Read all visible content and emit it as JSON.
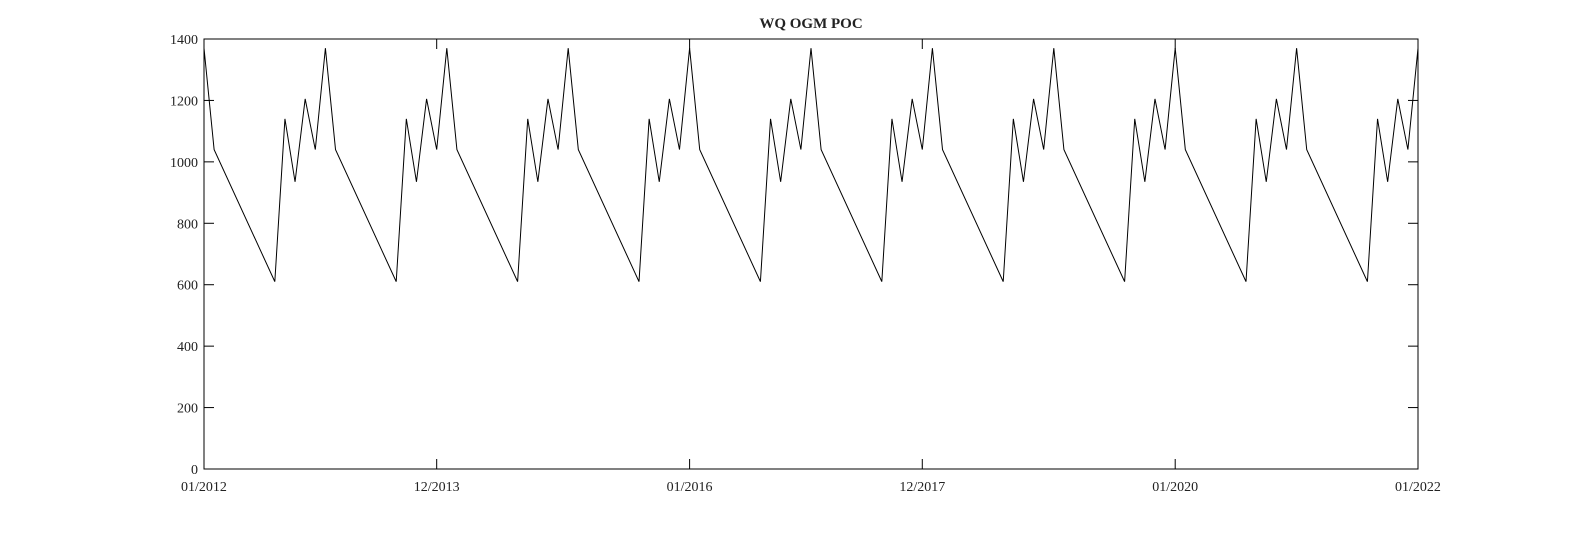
{
  "chart_data": {
    "type": "line",
    "title": "WQ OGM POC",
    "x": [
      "01/2012",
      "02/2012",
      "08/2012",
      "09/2012",
      "10/2012",
      "11/2012",
      "12/2012",
      "01/2013",
      "02/2013",
      "08/2013",
      "09/2013",
      "10/2013",
      "11/2013",
      "12/2013",
      "01/2014",
      "02/2014",
      "08/2014",
      "09/2014",
      "10/2014",
      "11/2014",
      "12/2014",
      "01/2015",
      "02/2015",
      "08/2015",
      "09/2015",
      "10/2015",
      "11/2015",
      "12/2015",
      "01/2016",
      "02/2016",
      "08/2016",
      "09/2016",
      "10/2016",
      "11/2016",
      "12/2016",
      "01/2017",
      "02/2017",
      "08/2017",
      "09/2017",
      "10/2017",
      "11/2017",
      "12/2017",
      "01/2018",
      "02/2018",
      "08/2018",
      "09/2018",
      "10/2018",
      "11/2018",
      "12/2018",
      "01/2019",
      "02/2019",
      "08/2019",
      "09/2019",
      "10/2019",
      "11/2019",
      "12/2019",
      "01/2020",
      "02/2020",
      "08/2020",
      "09/2020",
      "10/2020",
      "11/2020",
      "12/2020",
      "01/2021",
      "02/2021",
      "08/2021",
      "09/2021",
      "10/2021",
      "11/2021",
      "12/2021",
      "01/2022"
    ],
    "series": [
      {
        "color": "#000000",
        "values": [
          1370,
          1040,
          610,
          1140,
          935,
          1205,
          1040,
          1370,
          1040,
          610,
          1140,
          935,
          1205,
          1040,
          1370,
          1040,
          610,
          1140,
          935,
          1205,
          1040,
          1370,
          1040,
          610,
          1140,
          935,
          1205,
          1040,
          1370,
          1040,
          610,
          1140,
          935,
          1205,
          1040,
          1370,
          1040,
          610,
          1140,
          935,
          1205,
          1040,
          1370,
          1040,
          610,
          1140,
          935,
          1205,
          1040,
          1370,
          1040,
          610,
          1140,
          935,
          1205,
          1040,
          1370,
          1040,
          610,
          1140,
          935,
          1205,
          1040,
          1370,
          1040,
          610,
          1140,
          935,
          1205,
          1040,
          1370
        ]
      }
    ],
    "xlim": [
      "01/2012",
      "01/2022"
    ],
    "xticks": [
      "01/2012",
      "12/2013",
      "01/2016",
      "12/2017",
      "01/2020",
      "01/2022"
    ],
    "ylim": [
      0,
      1400
    ],
    "yticks": [
      0,
      200,
      400,
      600,
      800,
      1000,
      1200,
      1400
    ],
    "grid": false
  }
}
